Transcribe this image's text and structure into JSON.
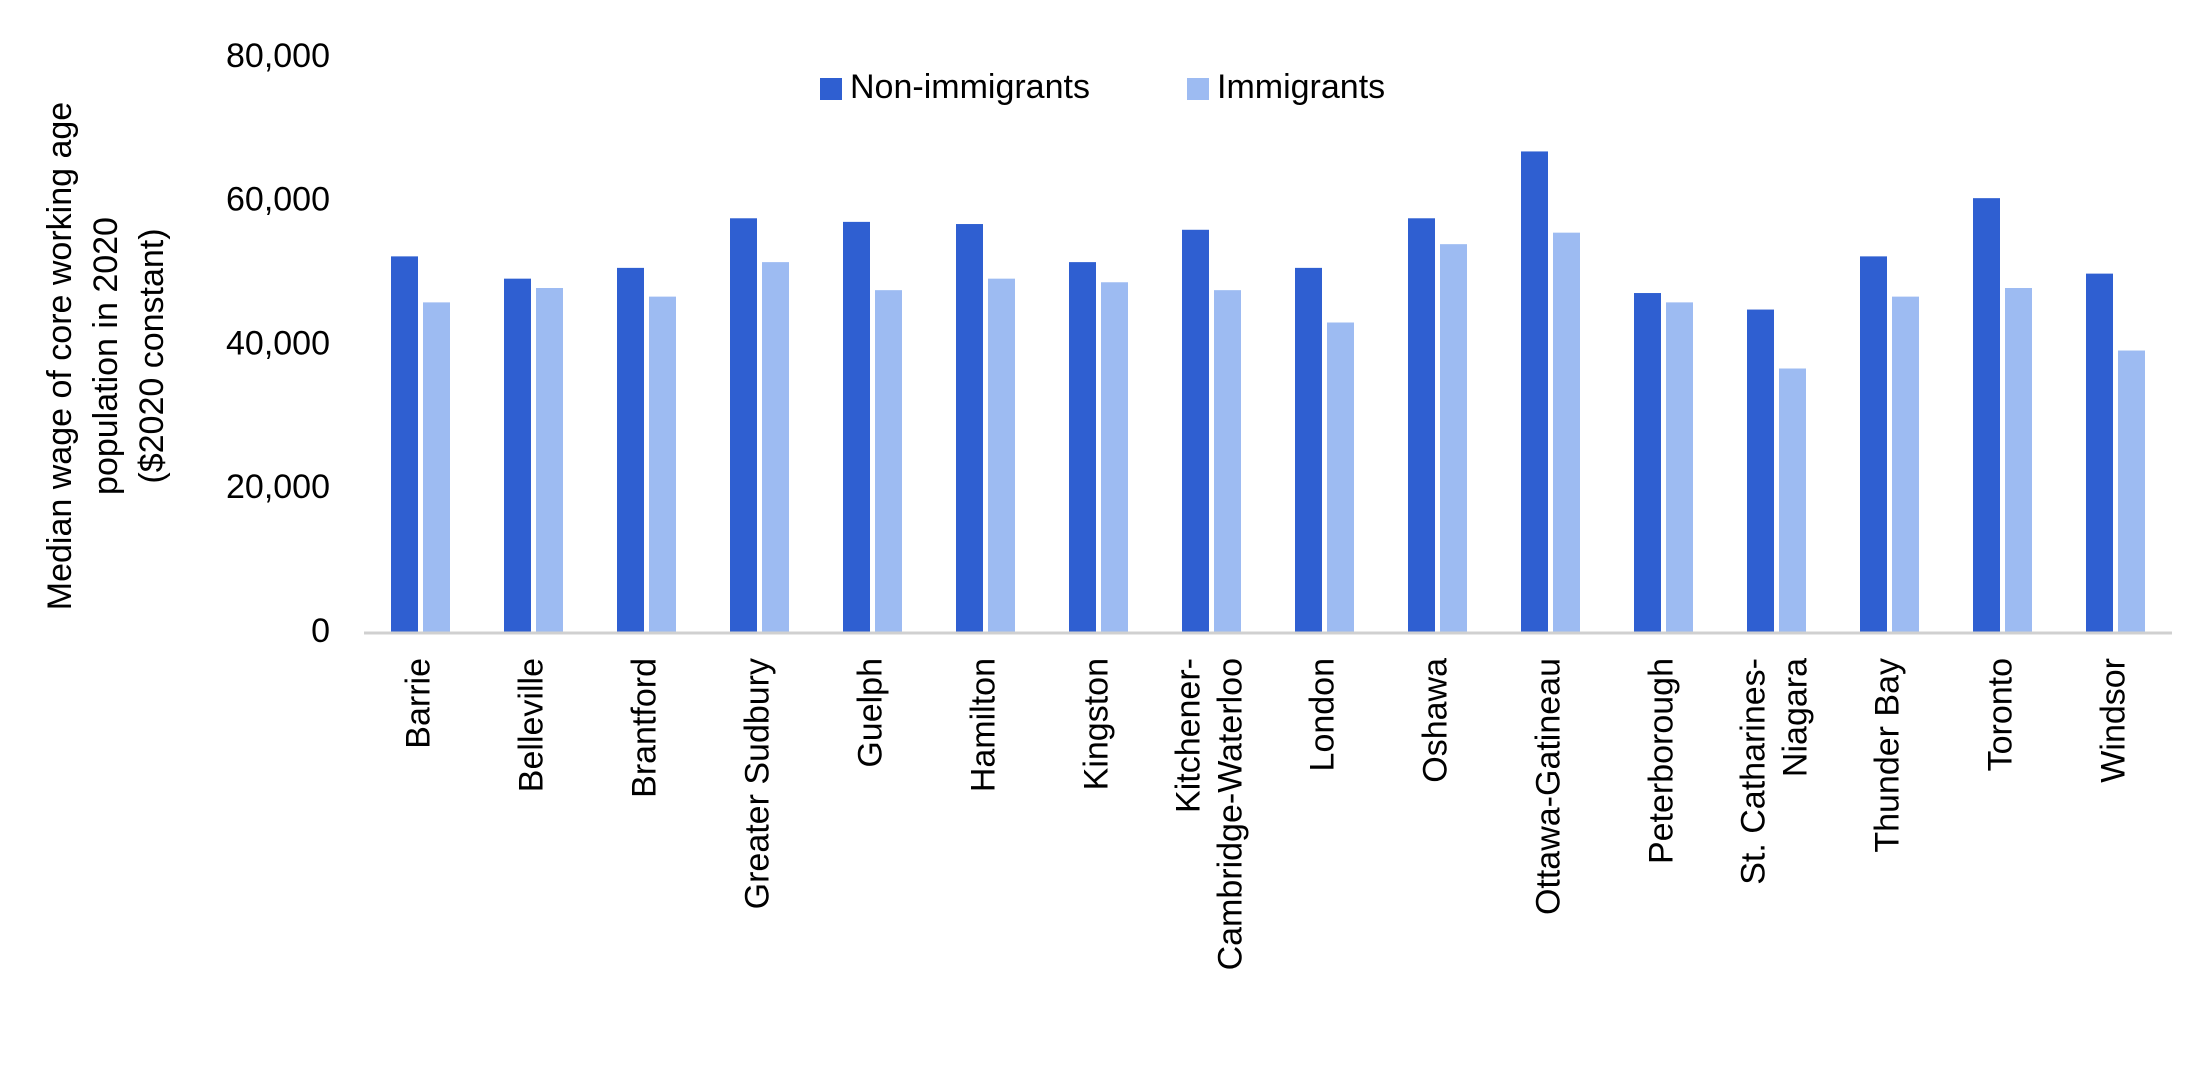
{
  "chart_data": {
    "type": "bar",
    "title": "",
    "ylabel_lines": [
      "Median wage of core working age",
      "population in 2020",
      "($2020 constant)"
    ],
    "xlabel": "",
    "ylim": [
      0,
      80000
    ],
    "yticks": [
      0,
      20000,
      40000,
      60000,
      80000
    ],
    "ytick_labels": [
      "0",
      "20,000",
      "40,000",
      "60,000",
      "80,000"
    ],
    "grid": false,
    "legend_position": "top-center",
    "categories": [
      [
        "Barrie"
      ],
      [
        "Belleville"
      ],
      [
        "Brantford"
      ],
      [
        "Greater Sudbury"
      ],
      [
        "Guelph"
      ],
      [
        "Hamilton"
      ],
      [
        "Kingston"
      ],
      [
        "Kitchener-",
        "Cambridge-Waterloo"
      ],
      [
        "London"
      ],
      [
        "Oshawa"
      ],
      [
        "Ottawa-Gatineau"
      ],
      [
        "Peterborough"
      ],
      [
        "St. Catharines-",
        "Niagara"
      ],
      [
        "Thunder Bay"
      ],
      [
        "Toronto"
      ],
      [
        "Windsor"
      ]
    ],
    "series": [
      {
        "name": "Non-immigrants",
        "color": "#2f5fd1",
        "values": [
          52400,
          49300,
          50800,
          57700,
          57200,
          56900,
          51600,
          56100,
          50800,
          57700,
          67000,
          47300,
          45000,
          52400,
          60500,
          50000
        ]
      },
      {
        "name": "Immigrants",
        "color": "#9dbbf2",
        "values": [
          46000,
          48000,
          46800,
          51600,
          47700,
          49300,
          48800,
          47700,
          43200,
          54100,
          55700,
          46000,
          36800,
          46800,
          48000,
          39300
        ]
      }
    ]
  }
}
